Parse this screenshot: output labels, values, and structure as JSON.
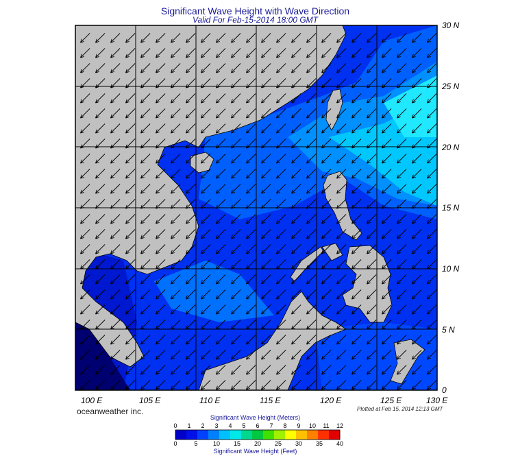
{
  "title": "Significant Wave Height with Wave Direction",
  "subtitle": "Valid For Feb-15-2014 18:00 GMT",
  "lat_labels": [
    "30 N",
    "25 N",
    "20 N",
    "15 N",
    "10 N",
    "5 N",
    "0"
  ],
  "lon_labels": [
    "100 E",
    "105 E",
    "110 E",
    "115 E",
    "120 E",
    "125 E",
    "130 E"
  ],
  "brand": "oceanweather inc.",
  "plotted": "Plotted at Feb 15, 2014 12:13 GMT",
  "colorbar": {
    "meters_title": "Significant Wave Height (Meters)",
    "feet_title": "Significant Wave Height (Feet)",
    "meters_ticks": [
      "0",
      "1",
      "2",
      "3",
      "4",
      "5",
      "6",
      "7",
      "8",
      "9",
      "10",
      "11",
      "12"
    ],
    "feet_ticks": [
      "0",
      "5",
      "10",
      "15",
      "20",
      "25",
      "30",
      "35",
      "40"
    ],
    "colors": [
      "#0000c8",
      "#0010e6",
      "#0040ff",
      "#0080ff",
      "#00c0ff",
      "#00e8e8",
      "#00d890",
      "#00c840",
      "#40e000",
      "#a0f000",
      "#ffff00",
      "#ffc000",
      "#ff8000",
      "#ff3000",
      "#e00000"
    ]
  },
  "map": {
    "extent": {
      "lon_min": 100,
      "lon_max": 130,
      "lat_min": 0,
      "lat_max": 30
    },
    "land_color": "#c0c0c0",
    "ocean_colors": {
      "low": "#0018e0",
      "mid": "#0040ff",
      "high": "#0090ff",
      "peak": "#00d0ff"
    },
    "wave_direction": "from northeast"
  }
}
